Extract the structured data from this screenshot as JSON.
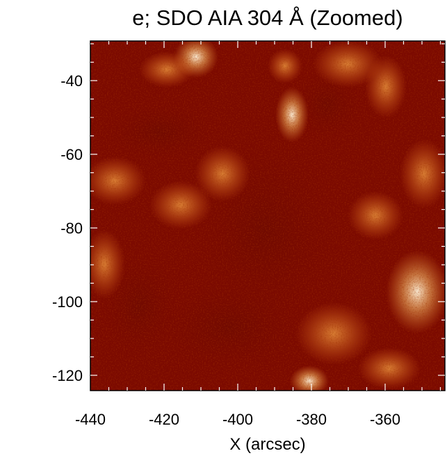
{
  "figure": {
    "title": "e; SDO AIA 304 Å (Zoomed)",
    "xlabel": "X (arcsec)",
    "ylabel": "",
    "colormap": [
      "#7a0a00",
      "#a11e00",
      "#c63a06",
      "#e35e14",
      "#f5861f",
      "#fbb35a",
      "#fde2b5"
    ],
    "x_ticks": [
      "-440",
      "-420",
      "-400",
      "-380",
      "-360"
    ],
    "y_ticks": [
      "-40",
      "-60",
      "-80",
      "-100",
      "-120"
    ]
  }
}
